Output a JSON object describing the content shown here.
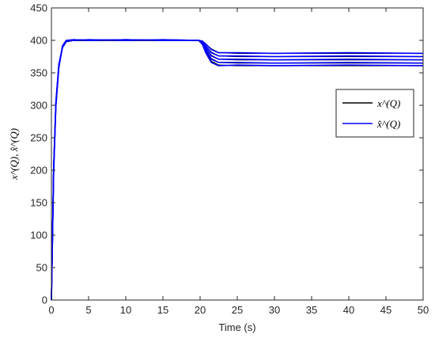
{
  "chart_data": {
    "type": "line",
    "xlabel": "Time (s)",
    "ylabel": "x^(Q), x̂^(Q)",
    "xlim": [
      0,
      50
    ],
    "ylim": [
      0,
      450
    ],
    "xticks": [
      0,
      5,
      10,
      15,
      20,
      25,
      30,
      35,
      40,
      45,
      50
    ],
    "yticks": [
      0,
      50,
      100,
      150,
      200,
      250,
      300,
      350,
      400,
      450
    ],
    "grid": false,
    "legend_position": "right",
    "series": [
      {
        "name": "x^(Q)",
        "color": "#000000",
        "groups": [
          {
            "x": [
              0,
              0.3,
              0.6,
              1.0,
              1.5,
              2.0,
              3,
              5,
              10,
              15,
              19.8,
              20.3,
              20.8,
              21.5,
              22.5,
              25,
              30,
              40,
              50
            ],
            "y": [
              0,
              200,
              300,
              360,
              390,
              398,
              400,
              400,
              400,
              400,
              400,
              395,
              382,
              368,
              362,
              361,
              361,
              361,
              361
            ]
          },
          {
            "x": [
              0,
              0.3,
              0.6,
              1.0,
              1.5,
              2.0,
              3,
              5,
              10,
              15,
              19.8,
              20.3,
              20.8,
              21.5,
              22.5,
              25,
              30,
              40,
              50
            ],
            "y": [
              0,
              200,
              300,
              360,
              390,
              398,
              400,
              400,
              400,
              400,
              400,
              396,
              385,
              372,
              366,
              365,
              365,
              365,
              365
            ]
          },
          {
            "x": [
              0,
              0.3,
              0.6,
              1.0,
              1.5,
              2.0,
              3,
              5,
              10,
              15,
              19.8,
              20.3,
              20.8,
              21.5,
              22.5,
              25,
              30,
              40,
              50
            ],
            "y": [
              0,
              200,
              300,
              360,
              390,
              398,
              400,
              400,
              400,
              400,
              400,
              397,
              388,
              377,
              371,
              370,
              370,
              370,
              370
            ]
          },
          {
            "x": [
              0,
              0.3,
              0.6,
              1.0,
              1.5,
              2.0,
              3,
              5,
              10,
              15,
              19.8,
              20.3,
              20.8,
              21.5,
              22.5,
              25,
              30,
              40,
              50
            ],
            "y": [
              0,
              200,
              300,
              360,
              390,
              398,
              400,
              400,
              400,
              400,
              400,
              398,
              391,
              382,
              376,
              375,
              375,
              375,
              375
            ]
          },
          {
            "x": [
              0,
              0.3,
              0.6,
              1.0,
              1.5,
              2.0,
              3,
              5,
              10,
              15,
              19.8,
              20.3,
              20.8,
              21.5,
              22.5,
              25,
              30,
              40,
              50
            ],
            "y": [
              0,
              200,
              300,
              360,
              390,
              398,
              400,
              400,
              400,
              400,
              400,
              399,
              394,
              387,
              381,
              380,
              380,
              380,
              380
            ]
          }
        ]
      },
      {
        "name": "x̂^(Q)",
        "color": "#0000ff",
        "groups": [
          {
            "x": [
              0,
              0.3,
              0.6,
              1.0,
              1.5,
              2.0,
              3,
              5,
              10,
              15,
              19.8,
              20.3,
              20.8,
              21.5,
              22.5,
              25,
              30,
              40,
              50
            ],
            "y": [
              0,
              195,
              298,
              358,
              392,
              400,
              401,
              400,
              401,
              400,
              400,
              394,
              380,
              366,
              361,
              362,
              361,
              362,
              361
            ]
          },
          {
            "x": [
              0,
              0.3,
              0.6,
              1.0,
              1.5,
              2.0,
              3,
              5,
              10,
              15,
              19.8,
              20.3,
              20.8,
              21.5,
              22.5,
              25,
              30,
              40,
              50
            ],
            "y": [
              0,
              198,
              300,
              359,
              391,
              399,
              400,
              401,
              400,
              401,
              400,
              396,
              384,
              371,
              366,
              366,
              365,
              366,
              365
            ]
          },
          {
            "x": [
              0,
              0.3,
              0.6,
              1.0,
              1.5,
              2.0,
              3,
              5,
              10,
              15,
              19.8,
              20.3,
              20.8,
              21.5,
              22.5,
              25,
              30,
              40,
              50
            ],
            "y": [
              0,
              201,
              302,
              361,
              389,
              398,
              401,
              400,
              401,
              400,
              400,
              397,
              388,
              376,
              371,
              371,
              370,
              371,
              370
            ]
          },
          {
            "x": [
              0,
              0.3,
              0.6,
              1.0,
              1.5,
              2.0,
              3,
              5,
              10,
              15,
              19.8,
              20.3,
              20.8,
              21.5,
              22.5,
              25,
              30,
              40,
              50
            ],
            "y": [
              0,
              203,
              303,
              362,
              390,
              399,
              400,
              401,
              400,
              401,
              400,
              398,
              391,
              381,
              376,
              376,
              375,
              376,
              375
            ]
          },
          {
            "x": [
              0,
              0.3,
              0.6,
              1.0,
              1.5,
              2.0,
              3,
              5,
              10,
              15,
              19.8,
              20.3,
              20.8,
              21.5,
              22.5,
              25,
              30,
              40,
              50
            ],
            "y": [
              0,
              205,
              305,
              363,
              391,
              400,
              401,
              400,
              401,
              400,
              400,
              399,
              394,
              386,
              381,
              381,
              380,
              381,
              380
            ]
          }
        ]
      }
    ]
  }
}
